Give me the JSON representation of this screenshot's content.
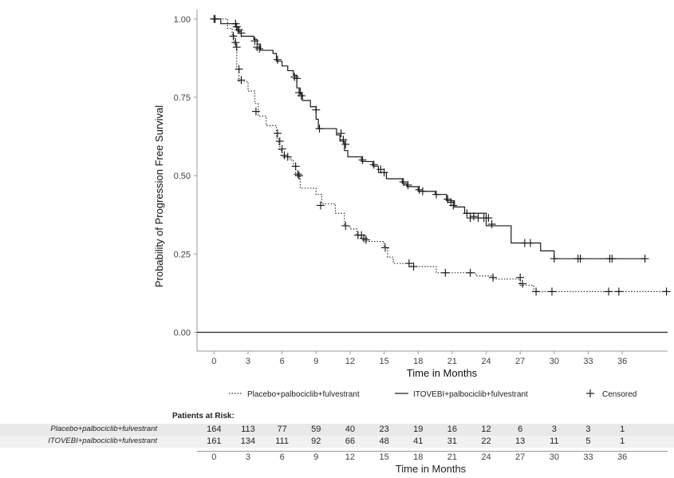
{
  "chart_data": {
    "type": "line",
    "xlabel": "Time in Months",
    "ylabel": "Probability of Progression Free Survival",
    "xlim": [
      -1.5,
      40
    ],
    "ylim": [
      -0.06,
      1.03
    ],
    "x_ticks": [
      "0",
      "3",
      "6",
      "9",
      "12",
      "15",
      "18",
      "21",
      "24",
      "27",
      "30",
      "33",
      "36"
    ],
    "y_ticks": [
      "0.00",
      "0.25",
      "0.50",
      "0.75",
      "1.00"
    ],
    "reference_line_y": 0,
    "legend": [
      {
        "label": "Placebo+palbociclib+fulvestrant",
        "style": "dotted"
      },
      {
        "label": "ITOVEBI+palbociclib+fulvestrant",
        "style": "solid"
      },
      {
        "label": "Censored",
        "style": "plus"
      }
    ],
    "series": [
      {
        "name": "ITOVEBI+palbociclib+fulvestrant",
        "style": "solid",
        "steps": [
          [
            0,
            1.0
          ],
          [
            0.6,
            0.985
          ],
          [
            1.9,
            0.975
          ],
          [
            2.1,
            0.96
          ],
          [
            2.4,
            0.945
          ],
          [
            3.5,
            0.935
          ],
          [
            3.8,
            0.92
          ],
          [
            4.1,
            0.9
          ],
          [
            5.2,
            0.89
          ],
          [
            5.5,
            0.865
          ],
          [
            6.0,
            0.85
          ],
          [
            6.5,
            0.835
          ],
          [
            7.0,
            0.82
          ],
          [
            7.3,
            0.78
          ],
          [
            7.6,
            0.76
          ],
          [
            7.8,
            0.74
          ],
          [
            8.5,
            0.72
          ],
          [
            9.0,
            0.68
          ],
          [
            9.2,
            0.65
          ],
          [
            10.8,
            0.63
          ],
          [
            11.1,
            0.61
          ],
          [
            11.5,
            0.58
          ],
          [
            11.8,
            0.56
          ],
          [
            13.0,
            0.545
          ],
          [
            14.0,
            0.53
          ],
          [
            14.5,
            0.51
          ],
          [
            15.2,
            0.49
          ],
          [
            16.6,
            0.475
          ],
          [
            17.0,
            0.465
          ],
          [
            18.0,
            0.45
          ],
          [
            19.5,
            0.44
          ],
          [
            20.5,
            0.42
          ],
          [
            21.2,
            0.4
          ],
          [
            22.1,
            0.38
          ],
          [
            24.0,
            0.34
          ],
          [
            26.2,
            0.285
          ],
          [
            28.8,
            0.26
          ],
          [
            30.0,
            0.235
          ],
          [
            38,
            0.235
          ]
        ],
        "censored": [
          [
            0.1,
            1.0
          ],
          [
            1.9,
            0.985
          ],
          [
            2.0,
            0.975
          ],
          [
            2.2,
            0.965
          ],
          [
            2.4,
            0.955
          ],
          [
            3.6,
            0.93
          ],
          [
            3.8,
            0.91
          ],
          [
            4.0,
            0.905
          ],
          [
            5.6,
            0.87
          ],
          [
            7.1,
            0.815
          ],
          [
            7.3,
            0.81
          ],
          [
            7.5,
            0.765
          ],
          [
            7.7,
            0.755
          ],
          [
            9.0,
            0.71
          ],
          [
            9.3,
            0.65
          ],
          [
            11.2,
            0.635
          ],
          [
            11.4,
            0.615
          ],
          [
            11.6,
            0.6
          ],
          [
            13.1,
            0.55
          ],
          [
            14.1,
            0.535
          ],
          [
            14.7,
            0.52
          ],
          [
            15.0,
            0.51
          ],
          [
            16.7,
            0.48
          ],
          [
            17.1,
            0.47
          ],
          [
            18.1,
            0.455
          ],
          [
            18.4,
            0.45
          ],
          [
            19.6,
            0.44
          ],
          [
            20.6,
            0.425
          ],
          [
            20.9,
            0.415
          ],
          [
            21.1,
            0.405
          ],
          [
            22.3,
            0.38
          ],
          [
            22.6,
            0.365
          ],
          [
            22.9,
            0.37
          ],
          [
            23.3,
            0.365
          ],
          [
            23.8,
            0.365
          ],
          [
            24.2,
            0.365
          ],
          [
            24.5,
            0.345
          ],
          [
            27.4,
            0.285
          ],
          [
            27.9,
            0.285
          ],
          [
            30.0,
            0.235
          ],
          [
            32.1,
            0.235
          ],
          [
            32.3,
            0.235
          ],
          [
            34.9,
            0.235
          ],
          [
            35.1,
            0.235
          ],
          [
            38.0,
            0.235
          ]
        ]
      },
      {
        "name": "Placebo+palbociclib+fulvestrant",
        "style": "dotted",
        "steps": [
          [
            0,
            1.0
          ],
          [
            1.2,
            0.97
          ],
          [
            1.6,
            0.95
          ],
          [
            1.8,
            0.92
          ],
          [
            2.0,
            0.84
          ],
          [
            2.2,
            0.8
          ],
          [
            3.0,
            0.77
          ],
          [
            3.6,
            0.73
          ],
          [
            3.9,
            0.69
          ],
          [
            4.6,
            0.66
          ],
          [
            5.5,
            0.62
          ],
          [
            5.7,
            0.6
          ],
          [
            5.8,
            0.58
          ],
          [
            6.0,
            0.56
          ],
          [
            6.7,
            0.55
          ],
          [
            7.0,
            0.53
          ],
          [
            7.2,
            0.5
          ],
          [
            7.6,
            0.46
          ],
          [
            9.0,
            0.44
          ],
          [
            9.5,
            0.41
          ],
          [
            10.7,
            0.38
          ],
          [
            11.5,
            0.34
          ],
          [
            12.0,
            0.33
          ],
          [
            12.6,
            0.31
          ],
          [
            13.4,
            0.29
          ],
          [
            15.0,
            0.27
          ],
          [
            15.3,
            0.24
          ],
          [
            15.8,
            0.22
          ],
          [
            17.4,
            0.21
          ],
          [
            19.6,
            0.19
          ],
          [
            23.1,
            0.18
          ],
          [
            24.6,
            0.17
          ],
          [
            27.0,
            0.15
          ],
          [
            28.2,
            0.13
          ],
          [
            40.0,
            0.13
          ]
        ],
        "censored": [
          [
            0.0,
            1.0
          ],
          [
            1.7,
            0.945
          ],
          [
            1.9,
            0.925
          ],
          [
            2.0,
            0.91
          ],
          [
            2.2,
            0.84
          ],
          [
            2.4,
            0.805
          ],
          [
            3.7,
            0.705
          ],
          [
            5.6,
            0.635
          ],
          [
            5.8,
            0.61
          ],
          [
            6.0,
            0.585
          ],
          [
            6.2,
            0.565
          ],
          [
            6.5,
            0.56
          ],
          [
            7.2,
            0.53
          ],
          [
            7.4,
            0.505
          ],
          [
            7.5,
            0.5
          ],
          [
            9.4,
            0.405
          ],
          [
            11.6,
            0.34
          ],
          [
            12.7,
            0.31
          ],
          [
            13.0,
            0.31
          ],
          [
            13.2,
            0.3
          ],
          [
            13.4,
            0.295
          ],
          [
            15.1,
            0.27
          ],
          [
            17.2,
            0.22
          ],
          [
            17.6,
            0.21
          ],
          [
            20.4,
            0.19
          ],
          [
            22.6,
            0.19
          ],
          [
            24.6,
            0.175
          ],
          [
            27.0,
            0.175
          ],
          [
            27.2,
            0.155
          ],
          [
            28.4,
            0.13
          ],
          [
            29.8,
            0.13
          ],
          [
            34.8,
            0.13
          ],
          [
            35.7,
            0.13
          ],
          [
            39.9,
            0.13
          ]
        ]
      }
    ]
  },
  "risk_table": {
    "title": "Patients at Risk:",
    "rows": [
      {
        "label": "Placebo+palbociclib+fulvestrant",
        "values": [
          "164",
          "113",
          "77",
          "59",
          "40",
          "23",
          "19",
          "16",
          "12",
          "6",
          "3",
          "3",
          "1"
        ]
      },
      {
        "label": "ITOVEBI+palbociclib+fulvestrant",
        "values": [
          "161",
          "134",
          "111",
          "92",
          "66",
          "48",
          "41",
          "31",
          "22",
          "13",
          "11",
          "5",
          "1"
        ]
      }
    ],
    "x_ticks": [
      "0",
      "3",
      "6",
      "9",
      "12",
      "15",
      "18",
      "21",
      "24",
      "27",
      "30",
      "33",
      "36"
    ],
    "xlabel": "Time in Months"
  }
}
